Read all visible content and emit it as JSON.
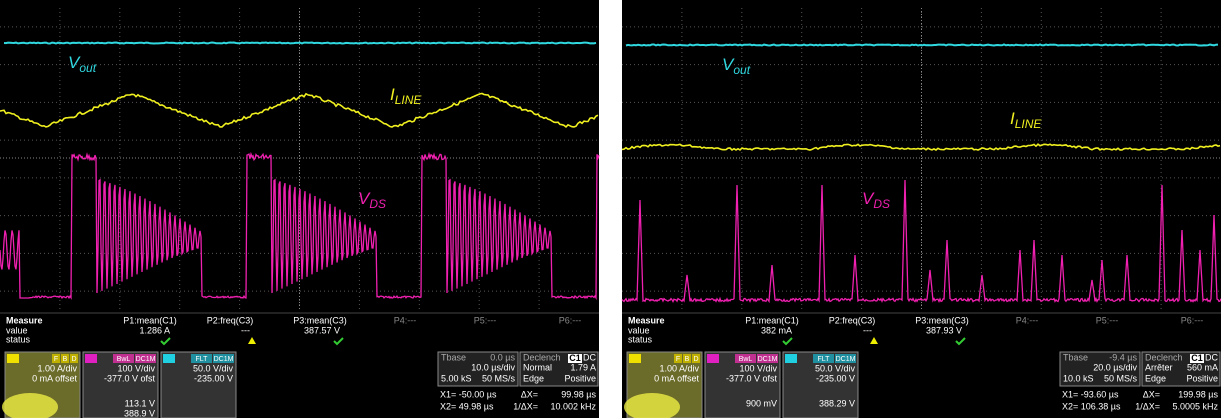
{
  "panels": [
    {
      "labels": {
        "vout": {
          "main": "V",
          "sub": "out"
        },
        "iline": {
          "main": "I",
          "sub": "LINE"
        },
        "vds": {
          "main": "V",
          "sub": "DS"
        }
      },
      "measure": {
        "heading": "Measure",
        "rows": [
          "value",
          "status"
        ],
        "params": [
          {
            "name": "P1:mean(C1)",
            "value": "1.286 A"
          },
          {
            "name": "P2:freq(C3)",
            "value": "---"
          },
          {
            "name": "P3:mean(C3)",
            "value": "387.57 V"
          },
          {
            "name": "P4:---"
          },
          {
            "name": "P5:---"
          },
          {
            "name": "P6:---"
          }
        ]
      },
      "channels": [
        {
          "color": "#f0e000",
          "tags": [
            "F",
            "B",
            "D"
          ],
          "lines": [
            "1.00 A/div",
            "0 mA offset"
          ]
        },
        {
          "color": "#e020c0",
          "tags": [
            "BwL",
            "DC1M"
          ],
          "lines": [
            "100 V/div",
            "-377.0 V ofst",
            "113.1 V",
            "388.9 V"
          ]
        },
        {
          "color": "#20d0e0",
          "tags": [
            "FLT",
            "DC1M"
          ],
          "lines": [
            "50.0 V/div",
            "-235.00 V"
          ]
        }
      ],
      "timebase": {
        "label": "Tbase",
        "offset": "0.0 µs",
        "div": "10.0 µs/div",
        "samples": "5.00 kS",
        "rate": "50 MS/s"
      },
      "trigger": {
        "label": "Declench",
        "source": "C1",
        "coupling": "DC",
        "mode": "Normal",
        "level": "1.79 A",
        "type": "Edge",
        "slope": "Positive"
      },
      "cursors": {
        "x1": "X1= -50.00 µs",
        "dx_label": "ΔX=",
        "dx": "99.98 µs",
        "x2": "X2= 49.98 µs",
        "inv_label": "1/ΔX=",
        "inv": "10.002 kHz"
      }
    },
    {
      "labels": {
        "vout": {
          "main": "V",
          "sub": "out"
        },
        "iline": {
          "main": "I",
          "sub": "LINE"
        },
        "vds": {
          "main": "V",
          "sub": "DS"
        }
      },
      "measure": {
        "heading": "Measure",
        "rows": [
          "value",
          "status"
        ],
        "params": [
          {
            "name": "P1:mean(C1)",
            "value": "382 mA"
          },
          {
            "name": "P2:freq(C3)",
            "value": "---"
          },
          {
            "name": "P3:mean(C3)",
            "value": "387.93 V"
          },
          {
            "name": "P4:---"
          },
          {
            "name": "P5:---"
          },
          {
            "name": "P6:---"
          }
        ]
      },
      "channels": [
        {
          "color": "#f0e000",
          "tags": [
            "F",
            "B",
            "D"
          ],
          "lines": [
            "1.00 A/div",
            "0 mA offset"
          ]
        },
        {
          "color": "#e020c0",
          "tags": [
            "BwL",
            "DC1M"
          ],
          "lines": [
            "100 V/div",
            "-377.0 V ofst",
            "900 mV"
          ]
        },
        {
          "color": "#20d0e0",
          "tags": [
            "FLT",
            "DC1M"
          ],
          "lines": [
            "50.0 V/div",
            "-235.00 V",
            "388.29 V"
          ]
        }
      ],
      "timebase": {
        "label": "Tbase",
        "offset": "-9.4 µs",
        "div": "20.0 µs/div",
        "samples": "10.0 kS",
        "rate": "50 MS/s"
      },
      "trigger": {
        "label": "Declench",
        "source": "C1",
        "coupling": "DC",
        "mode": "Arrêter",
        "level": "560 mA",
        "type": "Edge",
        "slope": "Positive"
      },
      "cursors": {
        "x1": "X1= -93.60 µs",
        "dx_label": "ΔX=",
        "dx": "199.98 µs",
        "x2": "X2= 106.38 µs",
        "inv_label": "1/ΔX=",
        "inv": "5.0005 kHz"
      }
    }
  ]
}
